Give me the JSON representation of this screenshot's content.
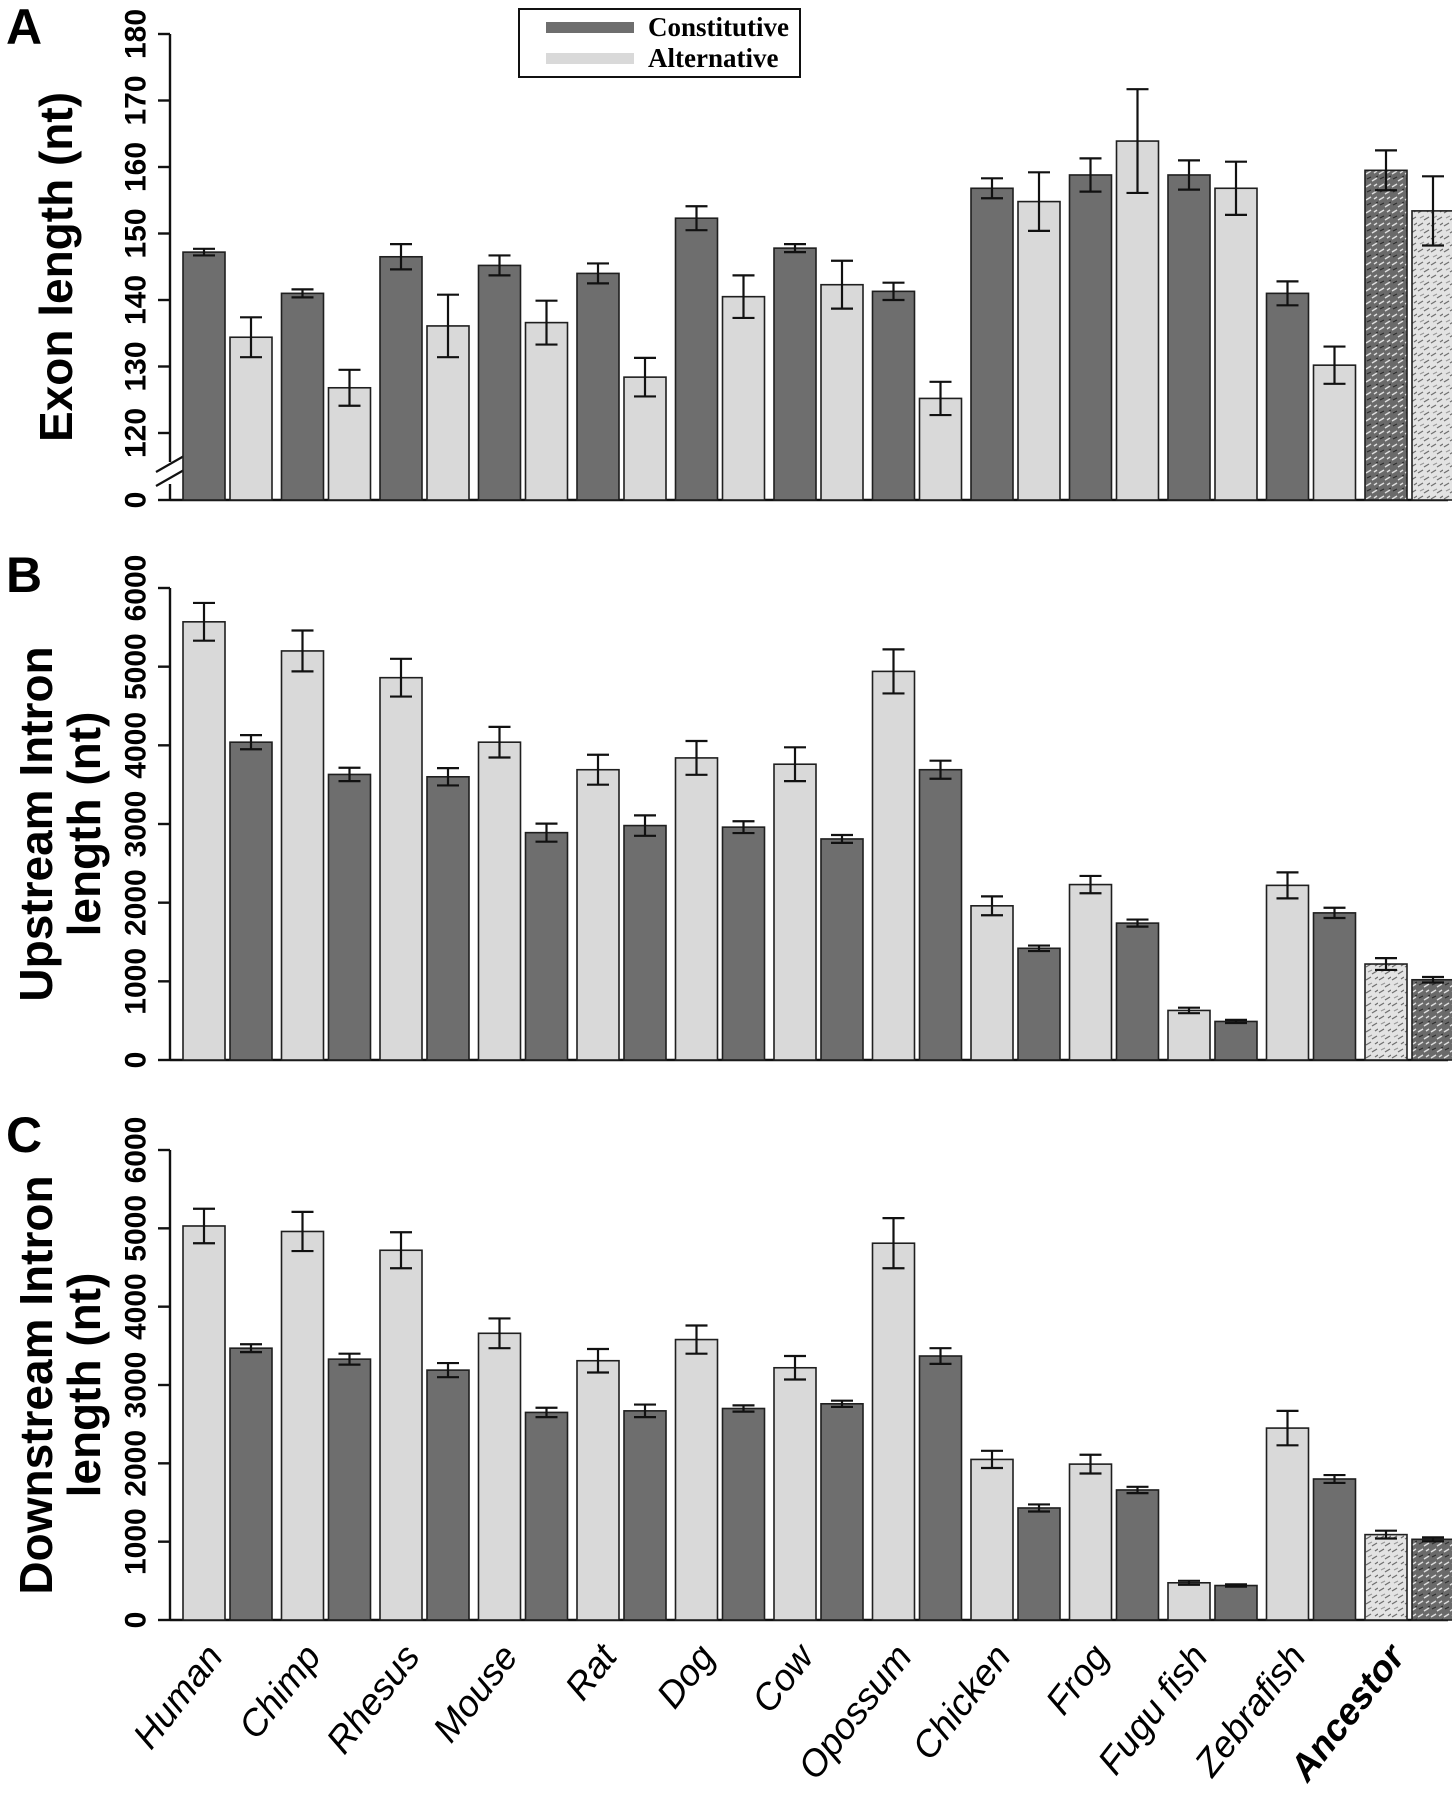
{
  "panel_letters": [
    "A",
    "B",
    "C"
  ],
  "legend": {
    "items": [
      {
        "label": "Constitutive",
        "color": "#6e6e6e"
      },
      {
        "label": "Alternative",
        "color": "#d9d9d9"
      }
    ]
  },
  "emphasized_category": "Ancestor",
  "chart_data": [
    {
      "type": "bar",
      "panel": "A",
      "ylabel_lines": [
        "Exon length (nt)"
      ],
      "ylim": [
        120,
        180
      ],
      "yticks": [
        0,
        120,
        130,
        140,
        150,
        160,
        170,
        180
      ],
      "axis_break": true,
      "grid": false,
      "legend_position": "top-center",
      "categories": [
        "Human",
        "Chimp",
        "Rhesus",
        "Mouse",
        "Rat",
        "Dog",
        "Cow",
        "Opossum",
        "Chicken",
        "Frog",
        "Fugu fish",
        "Zebrafish",
        "Ancestor"
      ],
      "series": [
        {
          "name": "Constitutive",
          "values": [
            147.2,
            141.0,
            146.5,
            145.2,
            144.0,
            152.3,
            147.8,
            141.3,
            156.8,
            158.8,
            158.8,
            141.0,
            159.5
          ],
          "errors": [
            0.5,
            0.6,
            1.9,
            1.5,
            1.5,
            1.8,
            0.6,
            1.3,
            1.5,
            2.5,
            2.2,
            1.8,
            3.0
          ]
        },
        {
          "name": "Alternative",
          "values": [
            134.4,
            126.8,
            136.1,
            136.6,
            128.4,
            140.5,
            142.3,
            125.2,
            154.8,
            163.9,
            156.8,
            130.2,
            153.4
          ],
          "errors": [
            3.0,
            2.7,
            4.7,
            3.3,
            2.9,
            3.2,
            3.6,
            2.5,
            4.4,
            7.8,
            4.0,
            2.8,
            5.2
          ]
        }
      ]
    },
    {
      "type": "bar",
      "panel": "B",
      "ylabel_lines": [
        "Upstream Intron",
        "length (nt)"
      ],
      "ylim": [
        0,
        6000
      ],
      "yticks": [
        0,
        1000,
        2000,
        3000,
        4000,
        5000,
        6000
      ],
      "axis_break": false,
      "grid": false,
      "categories": [
        "Human",
        "Chimp",
        "Rhesus",
        "Mouse",
        "Rat",
        "Dog",
        "Cow",
        "Opossum",
        "Chicken",
        "Frog",
        "Fugu fish",
        "Zebrafish",
        "Ancestor"
      ],
      "series": [
        {
          "name": "Alternative",
          "values": [
            5570,
            5200,
            4860,
            4040,
            3690,
            3840,
            3760,
            4940,
            1960,
            2230,
            630,
            2220,
            1220
          ],
          "errors": [
            240,
            260,
            240,
            195,
            190,
            215,
            215,
            280,
            120,
            110,
            35,
            165,
            75
          ]
        },
        {
          "name": "Constitutive",
          "values": [
            4040,
            3630,
            3600,
            2890,
            2980,
            2960,
            2810,
            3690,
            1420,
            1740,
            490,
            1870,
            1020
          ],
          "errors": [
            90,
            85,
            110,
            115,
            130,
            75,
            50,
            115,
            35,
            45,
            20,
            65,
            35
          ]
        }
      ]
    },
    {
      "type": "bar",
      "panel": "C",
      "ylabel_lines": [
        "Downstream Intron",
        "length (nt)"
      ],
      "ylim": [
        0,
        6000
      ],
      "yticks": [
        0,
        1000,
        2000,
        3000,
        4000,
        5000,
        6000
      ],
      "axis_break": false,
      "grid": false,
      "categories": [
        "Human",
        "Chimp",
        "Rhesus",
        "Mouse",
        "Rat",
        "Dog",
        "Cow",
        "Opossum",
        "Chicken",
        "Frog",
        "Fugu fish",
        "Zebrafish",
        "Ancestor"
      ],
      "series": [
        {
          "name": "Alternative",
          "values": [
            5030,
            4960,
            4720,
            3660,
            3310,
            3580,
            3220,
            4810,
            2050,
            1990,
            475,
            2450,
            1090
          ],
          "errors": [
            220,
            250,
            230,
            190,
            150,
            180,
            150,
            320,
            110,
            120,
            25,
            220,
            50
          ]
        },
        {
          "name": "Constitutive",
          "values": [
            3470,
            3330,
            3190,
            2650,
            2670,
            2700,
            2760,
            3370,
            1430,
            1660,
            440,
            1800,
            1030
          ],
          "errors": [
            50,
            70,
            90,
            60,
            80,
            40,
            40,
            100,
            45,
            40,
            15,
            50,
            25
          ]
        }
      ]
    }
  ]
}
